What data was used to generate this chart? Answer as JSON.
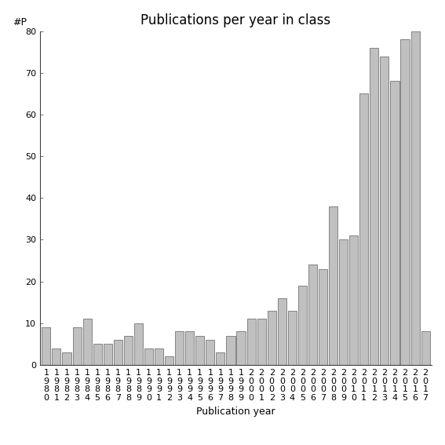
{
  "title": "Publications per year in class",
  "xlabel": "Publication year",
  "ylabel": "#P",
  "years": [
    1980,
    1981,
    1982,
    1983,
    1984,
    1985,
    1986,
    1987,
    1988,
    1989,
    1990,
    1991,
    1992,
    1993,
    1994,
    1995,
    1996,
    1997,
    1998,
    1999,
    2000,
    2001,
    2002,
    2003,
    2004,
    2005,
    2006,
    2007,
    2008,
    2009,
    2010,
    2011,
    2012,
    2013,
    2014,
    2015,
    2016,
    2017
  ],
  "values": [
    9,
    4,
    3,
    9,
    11,
    5,
    5,
    6,
    7,
    10,
    4,
    4,
    2,
    8,
    8,
    7,
    6,
    3,
    7,
    8,
    11,
    11,
    13,
    16,
    13,
    19,
    24,
    23,
    38,
    30,
    31,
    65,
    76,
    74,
    68,
    78,
    80,
    8
  ],
  "bar_color": "#c0c0c0",
  "bar_edgecolor": "#606060",
  "ylim": [
    0,
    80
  ],
  "yticks": [
    0,
    10,
    20,
    30,
    40,
    50,
    60,
    70,
    80
  ],
  "background_color": "#ffffff",
  "title_fontsize": 12,
  "axis_label_fontsize": 9,
  "tick_fontsize": 8
}
